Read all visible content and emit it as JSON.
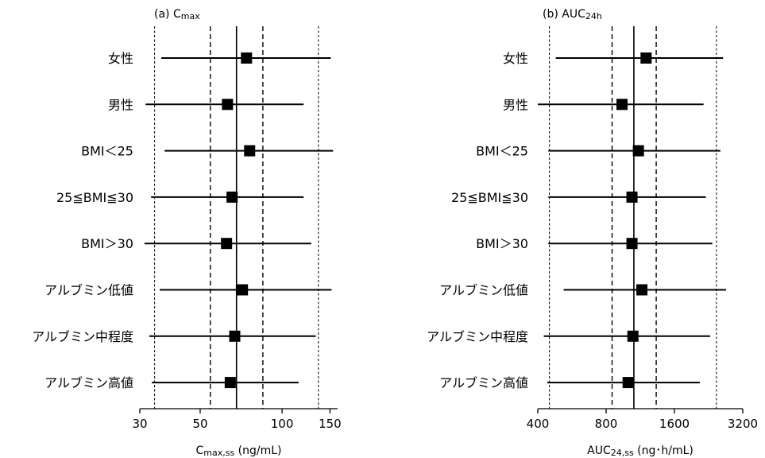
{
  "chart_data": [
    {
      "type": "forest",
      "title": "(a) Cmax",
      "title_parts": {
        "prefix": "(a)",
        "main": "C",
        "sub": "max"
      },
      "xlabel_parts": {
        "main": "C",
        "sub": "max,ss",
        "unit": "(ng/mL)"
      },
      "x_scale": "log",
      "xlim": [
        30,
        160
      ],
      "xticks": [
        30,
        50,
        100,
        150
      ],
      "tick_labels": [
        "30",
        "50",
        "100",
        "150"
      ],
      "reference": 68,
      "ref_lines": [
        {
          "value": 68,
          "style": "solid"
        },
        {
          "value": 54.5,
          "style": "dashed"
        },
        {
          "value": 85,
          "style": "dashed"
        },
        {
          "value": 34,
          "style": "dotted"
        },
        {
          "value": 136,
          "style": "dotted"
        }
      ],
      "rows": [
        {
          "label": "女性",
          "est": 74,
          "low": 36,
          "high": 151
        },
        {
          "label": "男性",
          "est": 63,
          "low": 31.5,
          "high": 120
        },
        {
          "label": "BMI＜25",
          "est": 76,
          "low": 37,
          "high": 154
        },
        {
          "label": "25≦BMI≦30",
          "est": 65.5,
          "low": 33,
          "high": 120
        },
        {
          "label": "BMI＞30",
          "est": 62.5,
          "low": 31.2,
          "high": 128
        },
        {
          "label": "アルブミン低値",
          "est": 71.5,
          "low": 35.5,
          "high": 152
        },
        {
          "label": "アルブミン中程度",
          "est": 67,
          "low": 32.5,
          "high": 133
        },
        {
          "label": "アルブミン高値",
          "est": 64.5,
          "low": 33.2,
          "high": 115
        }
      ]
    },
    {
      "type": "forest",
      "title": "(b) AUC24h",
      "title_parts": {
        "prefix": "(b)",
        "main": "AUC",
        "sub": "24h"
      },
      "xlabel_parts": {
        "main": "AUC",
        "sub": "24,ss",
        "unit": "(ng･h/mL)"
      },
      "x_scale": "log",
      "xlim": [
        400,
        3200
      ],
      "xticks": [
        400,
        800,
        1600,
        3200
      ],
      "tick_labels": [
        "400",
        "800",
        "1600",
        "3200"
      ],
      "reference": 1060,
      "ref_lines": [
        {
          "value": 1060,
          "style": "solid"
        },
        {
          "value": 850,
          "style": "dashed"
        },
        {
          "value": 1330,
          "style": "dashed"
        },
        {
          "value": 450,
          "style": "dotted"
        },
        {
          "value": 2450,
          "style": "dotted"
        }
      ],
      "rows": [
        {
          "label": "女性",
          "est": 1200,
          "low": 480,
          "high": 2620
        },
        {
          "label": "男性",
          "est": 940,
          "low": 400,
          "high": 2150
        },
        {
          "label": "BMI＜25",
          "est": 1110,
          "low": 445,
          "high": 2550
        },
        {
          "label": "25≦BMI≦30",
          "est": 1040,
          "low": 445,
          "high": 2200
        },
        {
          "label": "BMI＞30",
          "est": 1040,
          "low": 445,
          "high": 2350
        },
        {
          "label": "アルブミン低値",
          "est": 1150,
          "low": 520,
          "high": 2700
        },
        {
          "label": "アルブミン中程度",
          "est": 1050,
          "low": 425,
          "high": 2300
        },
        {
          "label": "アルブミン高値",
          "est": 1000,
          "low": 440,
          "high": 2070
        }
      ]
    }
  ]
}
